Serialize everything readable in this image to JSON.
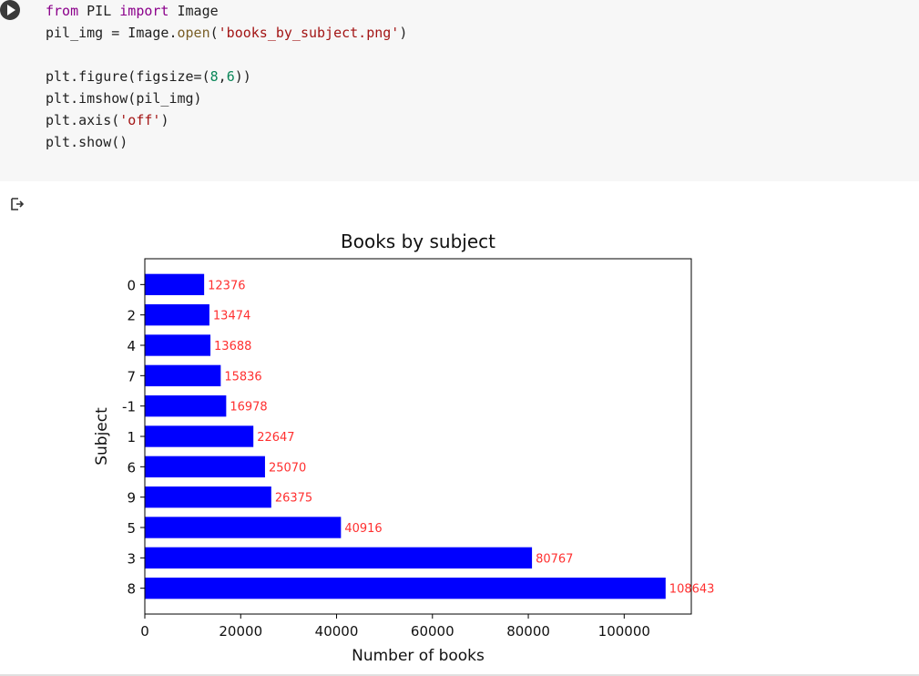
{
  "code_cell": {
    "lines": [
      [
        {
          "t": "from",
          "c": "kw"
        },
        {
          "t": " PIL ",
          "c": ""
        },
        {
          "t": "import",
          "c": "kw"
        },
        {
          "t": " Image",
          "c": ""
        }
      ],
      [
        {
          "t": "pil_img = Image.",
          "c": ""
        },
        {
          "t": "open",
          "c": "fn"
        },
        {
          "t": "(",
          "c": ""
        },
        {
          "t": "'books_by_subject.png'",
          "c": "str"
        },
        {
          "t": ")",
          "c": ""
        }
      ],
      [
        {
          "t": "",
          "c": ""
        }
      ],
      [
        {
          "t": "plt.figure(figsize=(",
          "c": ""
        },
        {
          "t": "8",
          "c": "num"
        },
        {
          "t": ",",
          "c": ""
        },
        {
          "t": "6",
          "c": "num"
        },
        {
          "t": "))",
          "c": ""
        }
      ],
      [
        {
          "t": "plt.imshow(pil_img)",
          "c": ""
        }
      ],
      [
        {
          "t": "plt.axis(",
          "c": ""
        },
        {
          "t": "'off'",
          "c": "str"
        },
        {
          "t": ")",
          "c": ""
        }
      ],
      [
        {
          "t": "plt.show()",
          "c": ""
        }
      ]
    ]
  },
  "chart_data": {
    "type": "bar",
    "orientation": "horizontal",
    "title": "Books by subject",
    "xlabel": "Number of books",
    "ylabel": "Subject",
    "categories": [
      "0",
      "2",
      "4",
      "7",
      "-1",
      "1",
      "6",
      "9",
      "5",
      "3",
      "8"
    ],
    "values": [
      12376,
      13474,
      13688,
      15836,
      16978,
      22647,
      25070,
      26375,
      40916,
      80767,
      108643
    ],
    "xlim": [
      0,
      114000
    ],
    "xticks": [
      0,
      20000,
      40000,
      60000,
      80000,
      100000
    ],
    "bar_color": "#0000ff",
    "label_color": "#ff3030",
    "grid": false,
    "legend": "none"
  }
}
